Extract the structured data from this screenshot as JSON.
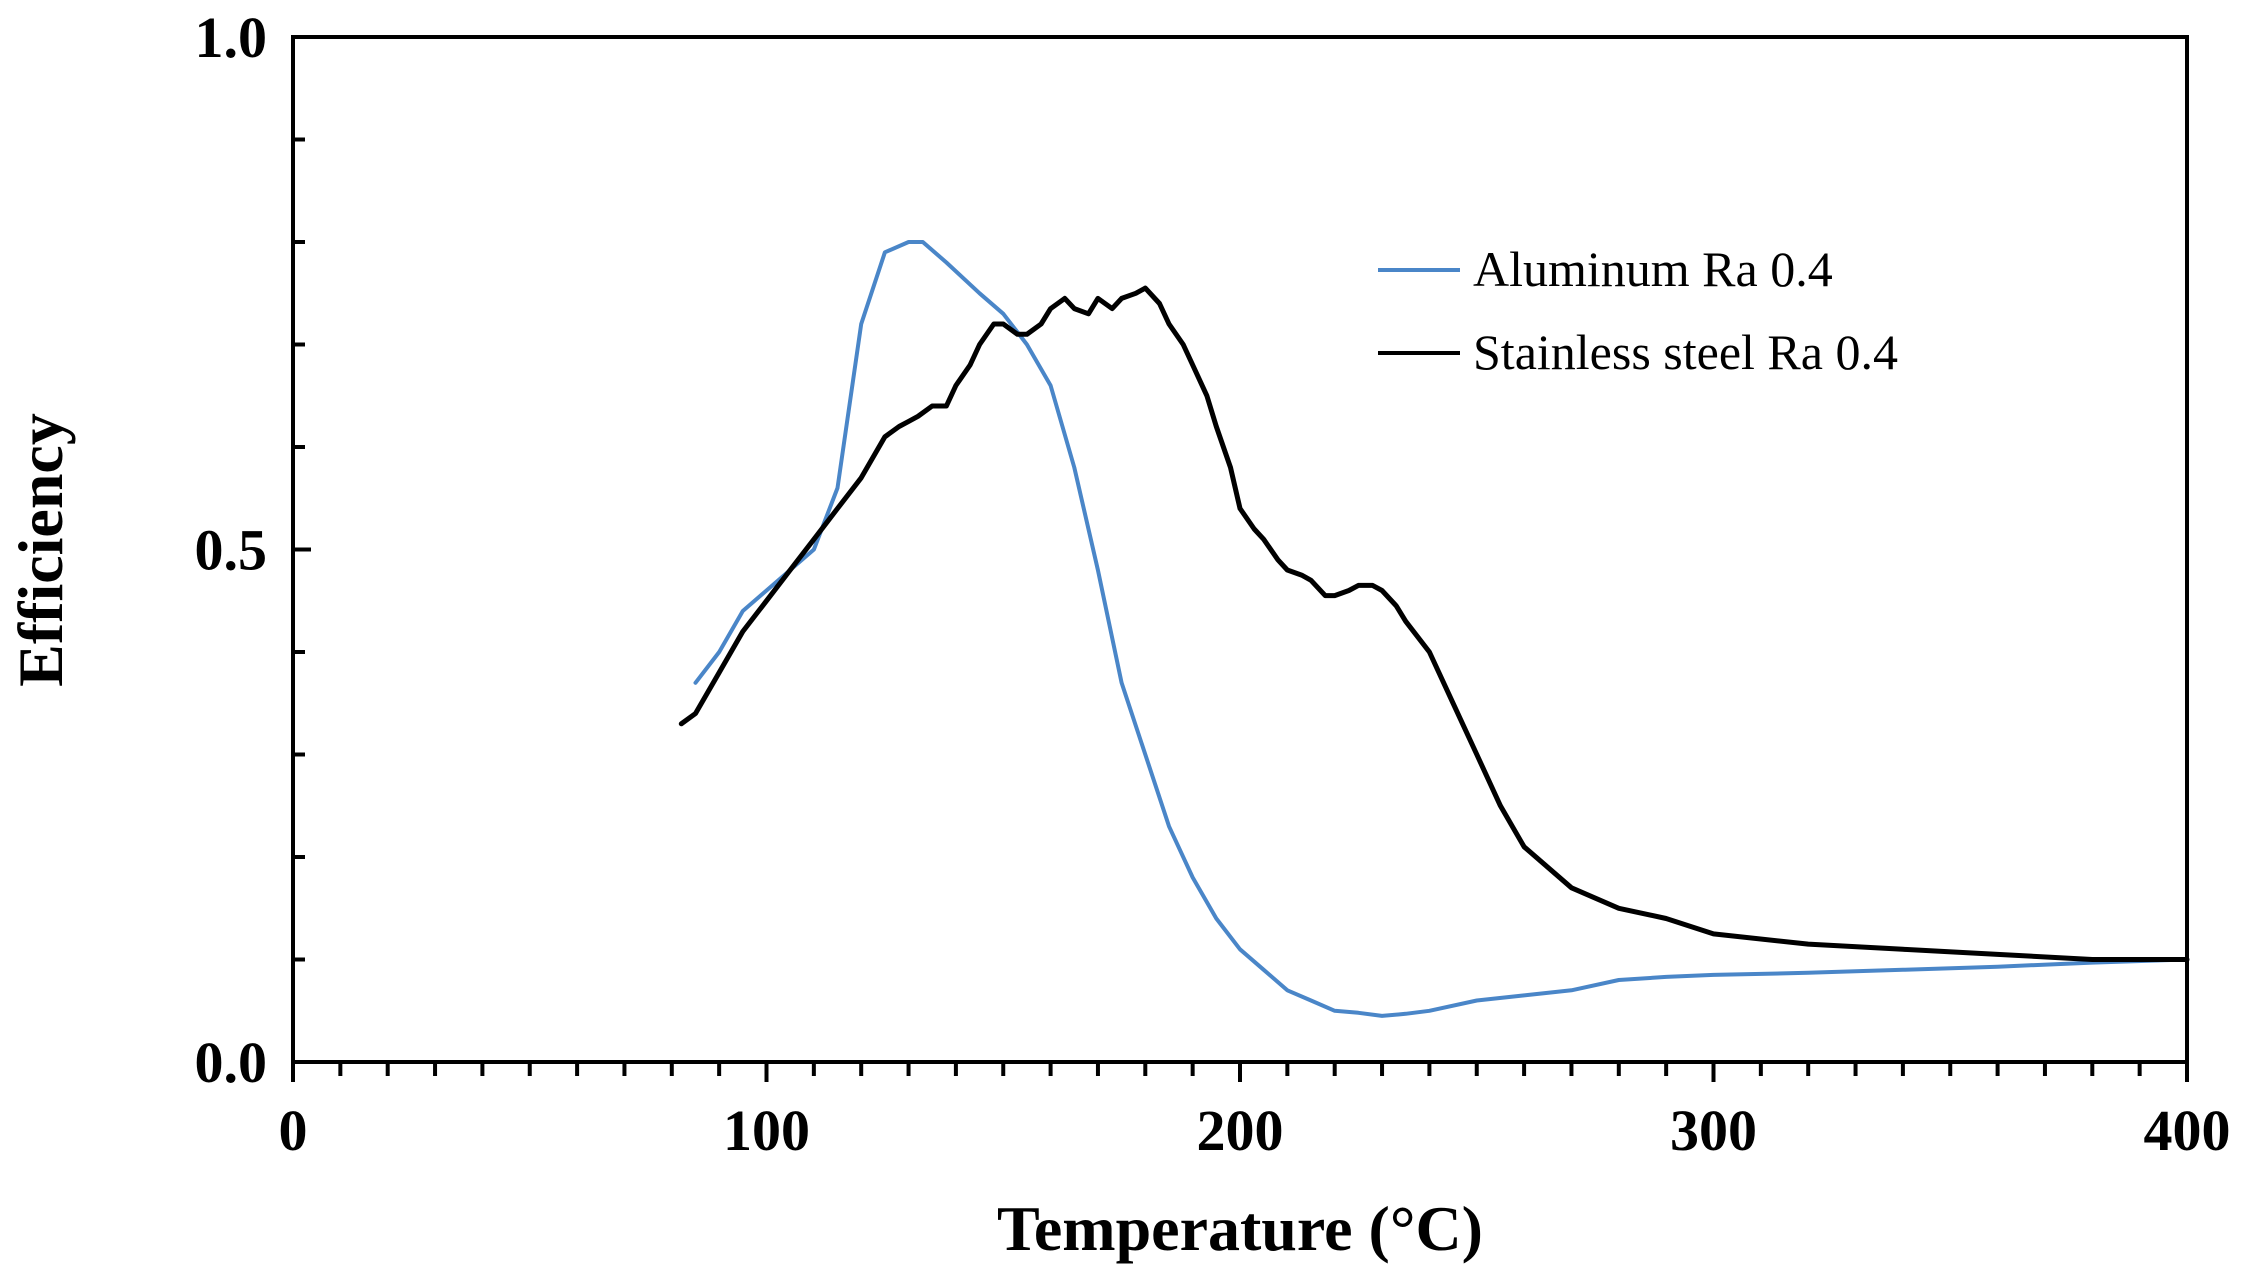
{
  "chart_data": {
    "type": "line",
    "title": "",
    "xlabel": "Temperature (°C)",
    "ylabel": "Efficiency",
    "xlim": [
      0,
      400
    ],
    "ylim": [
      0.0,
      1.0
    ],
    "xticks": [
      0,
      100,
      200,
      300,
      400
    ],
    "xtick_labels": [
      "0",
      "100",
      "200",
      "300",
      "400"
    ],
    "yticks": [
      0.0,
      0.5,
      1.0
    ],
    "ytick_labels": [
      "0.0",
      "0.5",
      "1.0"
    ],
    "grid": false,
    "legend_position": "top-right",
    "series": [
      {
        "name": "Aluminum Ra 0.4",
        "color": "#4a86c8",
        "x": [
          85,
          90,
          95,
          100,
          105,
          110,
          115,
          120,
          125,
          130,
          133,
          138,
          145,
          150,
          155,
          160,
          165,
          170,
          175,
          180,
          185,
          190,
          195,
          200,
          205,
          210,
          215,
          220,
          225,
          230,
          235,
          240,
          250,
          260,
          270,
          280,
          290,
          300,
          320,
          340,
          360,
          380,
          400
        ],
        "y": [
          0.37,
          0.4,
          0.44,
          0.46,
          0.48,
          0.5,
          0.56,
          0.72,
          0.79,
          0.8,
          0.8,
          0.78,
          0.75,
          0.73,
          0.7,
          0.66,
          0.58,
          0.48,
          0.37,
          0.3,
          0.23,
          0.18,
          0.14,
          0.11,
          0.09,
          0.07,
          0.06,
          0.05,
          0.048,
          0.045,
          0.047,
          0.05,
          0.06,
          0.065,
          0.07,
          0.08,
          0.083,
          0.085,
          0.087,
          0.09,
          0.093,
          0.097,
          0.1
        ]
      },
      {
        "name": "Stainless steel Ra 0.4",
        "color": "#000000",
        "x": [
          82,
          85,
          90,
          95,
          100,
          105,
          110,
          115,
          120,
          125,
          128,
          130,
          132,
          135,
          138,
          140,
          143,
          145,
          148,
          150,
          153,
          155,
          158,
          160,
          163,
          165,
          168,
          170,
          173,
          175,
          178,
          180,
          183,
          185,
          188,
          190,
          193,
          195,
          198,
          200,
          203,
          205,
          208,
          210,
          213,
          215,
          218,
          220,
          223,
          225,
          228,
          230,
          233,
          235,
          240,
          245,
          250,
          255,
          260,
          270,
          280,
          290,
          300,
          320,
          340,
          360,
          380,
          400
        ],
        "y": [
          0.33,
          0.34,
          0.38,
          0.42,
          0.45,
          0.48,
          0.51,
          0.54,
          0.57,
          0.61,
          0.62,
          0.625,
          0.63,
          0.64,
          0.64,
          0.66,
          0.68,
          0.7,
          0.72,
          0.72,
          0.71,
          0.71,
          0.72,
          0.735,
          0.745,
          0.735,
          0.73,
          0.745,
          0.735,
          0.745,
          0.75,
          0.755,
          0.74,
          0.72,
          0.7,
          0.68,
          0.65,
          0.62,
          0.58,
          0.54,
          0.52,
          0.51,
          0.49,
          0.48,
          0.475,
          0.47,
          0.455,
          0.455,
          0.46,
          0.465,
          0.465,
          0.46,
          0.445,
          0.43,
          0.4,
          0.35,
          0.3,
          0.25,
          0.21,
          0.17,
          0.15,
          0.14,
          0.125,
          0.115,
          0.11,
          0.105,
          0.1,
          0.1
        ]
      }
    ]
  }
}
